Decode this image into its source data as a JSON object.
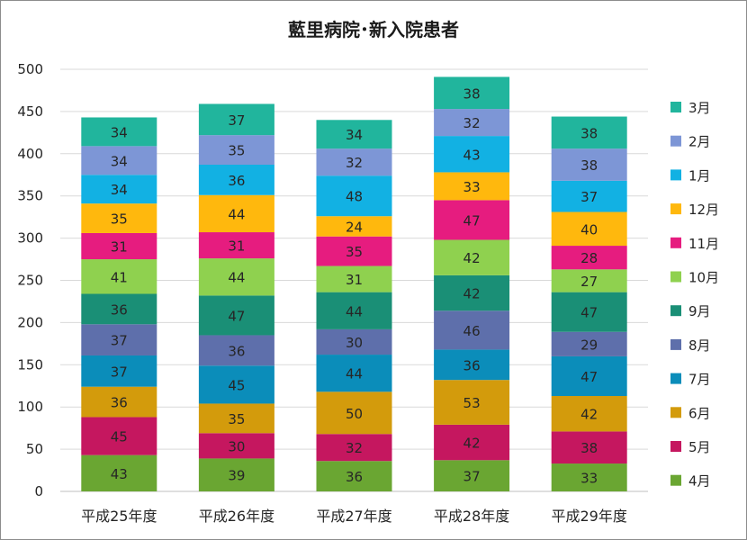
{
  "chart_data": {
    "type": "bar",
    "stacked": true,
    "title": "藍里病院･新入院患者",
    "xlabel": "",
    "ylabel": "",
    "ylim": [
      0,
      500
    ],
    "yticks": [
      0,
      50,
      100,
      150,
      200,
      250,
      300,
      350,
      400,
      450,
      500
    ],
    "grid": true,
    "legend_position": "right",
    "categories": [
      "平成25年度",
      "平成26年度",
      "平成27年度",
      "平成28年度",
      "平成29年度"
    ],
    "series": [
      {
        "name": "4月",
        "color": "#6aa632",
        "values": [
          43,
          39,
          36,
          37,
          33
        ]
      },
      {
        "name": "5月",
        "color": "#c5175f",
        "values": [
          45,
          30,
          32,
          42,
          38
        ]
      },
      {
        "name": "6月",
        "color": "#d39b0c",
        "values": [
          36,
          35,
          50,
          53,
          42
        ]
      },
      {
        "name": "7月",
        "color": "#0b8dba",
        "values": [
          37,
          45,
          44,
          36,
          47
        ]
      },
      {
        "name": "8月",
        "color": "#5e6fab",
        "values": [
          37,
          36,
          30,
          46,
          29
        ]
      },
      {
        "name": "9月",
        "color": "#1a8f76",
        "values": [
          36,
          47,
          44,
          42,
          47
        ]
      },
      {
        "name": "10月",
        "color": "#8fd14f",
        "values": [
          41,
          44,
          31,
          42,
          27
        ]
      },
      {
        "name": "11月",
        "color": "#e61c7f",
        "values": [
          31,
          31,
          35,
          47,
          28
        ]
      },
      {
        "name": "12月",
        "color": "#ffb80d",
        "values": [
          35,
          44,
          24,
          33,
          40
        ]
      },
      {
        "name": "1月",
        "color": "#12b1e3",
        "values": [
          34,
          36,
          48,
          43,
          37
        ]
      },
      {
        "name": "2月",
        "color": "#7d96d6",
        "values": [
          34,
          35,
          32,
          32,
          38
        ]
      },
      {
        "name": "3月",
        "color": "#21b59d",
        "values": [
          34,
          37,
          34,
          38,
          38
        ]
      }
    ]
  }
}
